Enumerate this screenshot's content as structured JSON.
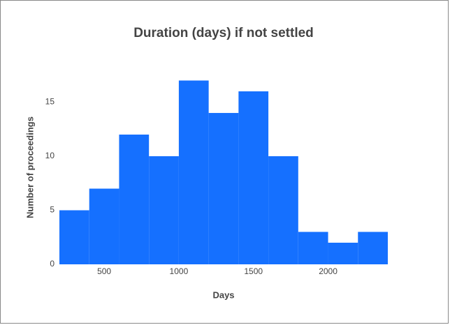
{
  "chart_data": {
    "type": "histogram",
    "title": "Duration (days) if not settled",
    "x_label": "Days",
    "y_label": "Number of proceedings",
    "bins": [
      200,
      400,
      600,
      800,
      1000,
      1200,
      1400,
      1600,
      1800,
      2000,
      2200,
      2400
    ],
    "values": [
      5,
      7,
      12,
      10,
      17,
      14,
      16,
      10,
      3,
      2,
      3
    ],
    "color": "#1570ff",
    "xlim": [
      200,
      2400
    ],
    "xticks": [
      500,
      1000,
      1500,
      2000
    ],
    "ylim": [
      0,
      17.9
    ],
    "yticks": [
      0,
      5,
      10,
      15
    ],
    "grid": false
  }
}
